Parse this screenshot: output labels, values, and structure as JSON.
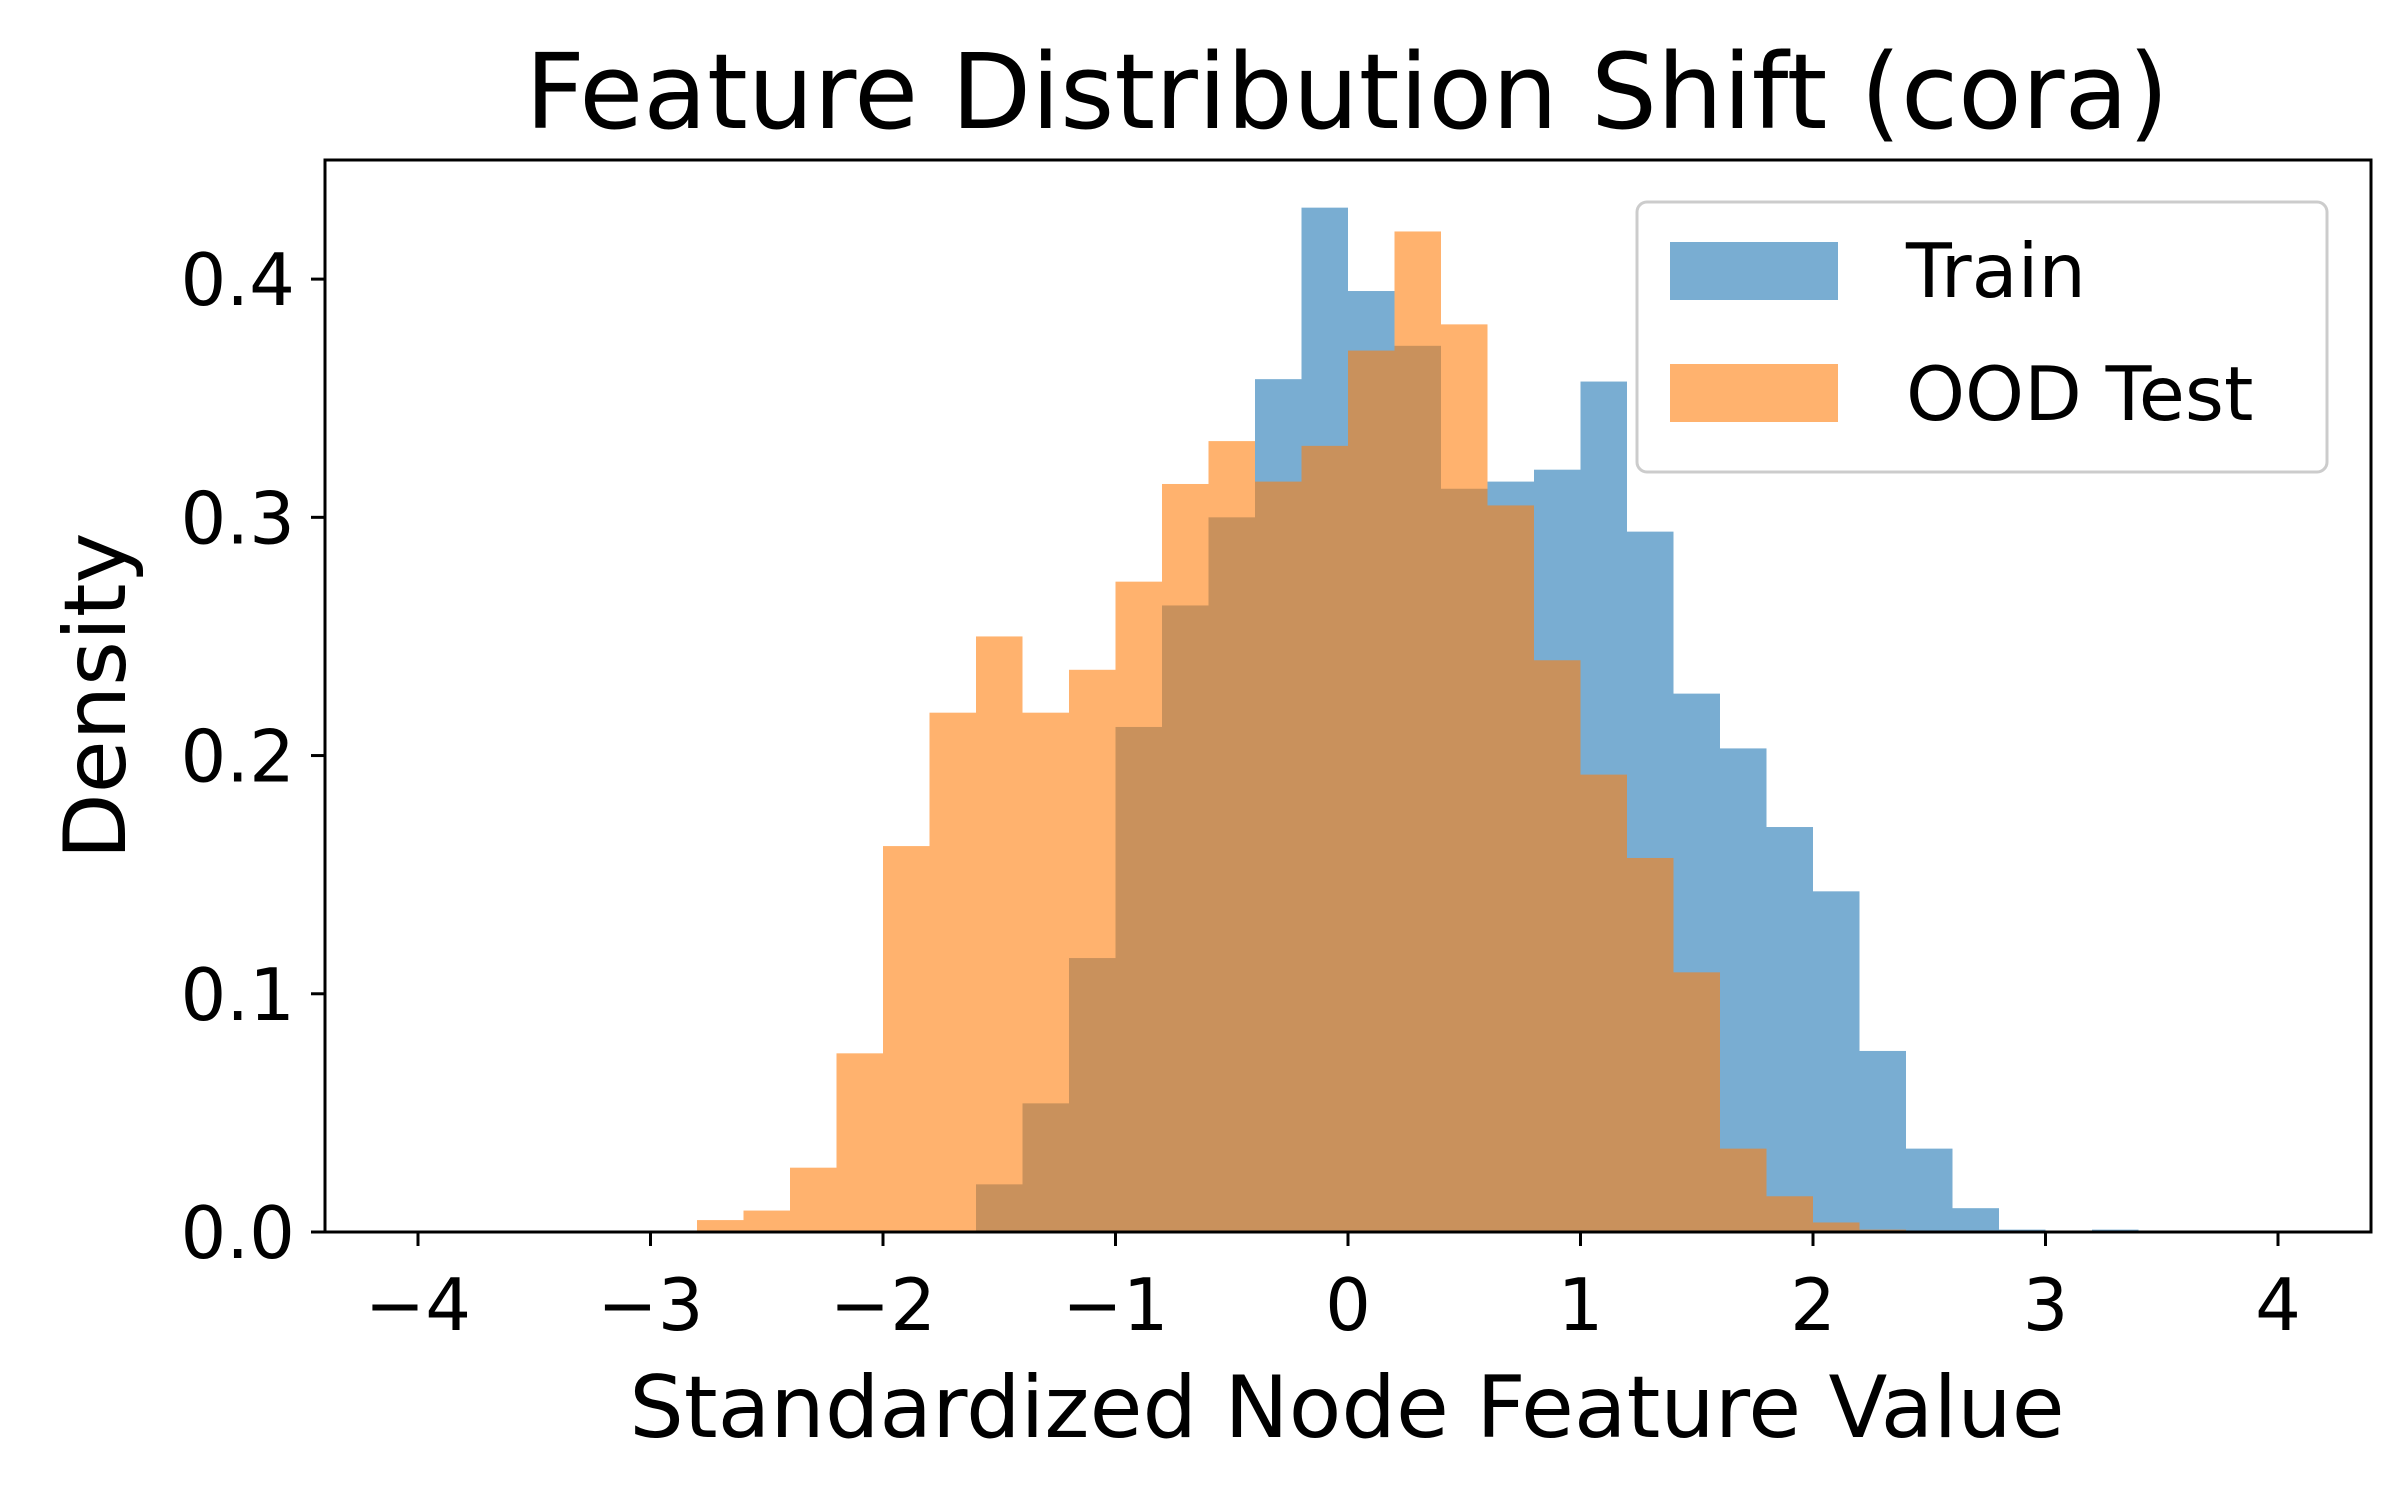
{
  "chart_data": {
    "type": "bar",
    "title": "Feature Distribution Shift (cora)",
    "xlabel": "Standardized Node Feature Value",
    "ylabel": "Density",
    "xlim": [
      -4.4,
      4.4
    ],
    "ylim": [
      0,
      0.45
    ],
    "x_ticks": [
      -4,
      -3,
      -2,
      -1,
      0,
      1,
      2,
      3,
      4
    ],
    "x_tick_labels": [
      "−4",
      "−3",
      "−2",
      "−1",
      "0",
      "1",
      "2",
      "3",
      "4"
    ],
    "y_ticks": [
      0.0,
      0.1,
      0.2,
      0.3,
      0.4
    ],
    "y_tick_labels": [
      "0.0",
      "0.1",
      "0.2",
      "0.3",
      "0.4"
    ],
    "grid": false,
    "legend_position": "top-right",
    "bin_width": 0.2,
    "series": [
      {
        "name": "Train",
        "color": "#1f77b4",
        "opacity": 0.6,
        "bins": [
          {
            "x0": -1.6,
            "value": 0.02
          },
          {
            "x0": -1.4,
            "value": 0.054
          },
          {
            "x0": -1.2,
            "value": 0.115
          },
          {
            "x0": -1.0,
            "value": 0.212
          },
          {
            "x0": -0.8,
            "value": 0.263
          },
          {
            "x0": -0.6,
            "value": 0.3
          },
          {
            "x0": -0.4,
            "value": 0.358
          },
          {
            "x0": -0.2,
            "value": 0.43
          },
          {
            "x0": 0.0,
            "value": 0.395
          },
          {
            "x0": 0.2,
            "value": 0.372
          },
          {
            "x0": 0.4,
            "value": 0.312
          },
          {
            "x0": 0.6,
            "value": 0.315
          },
          {
            "x0": 0.8,
            "value": 0.32
          },
          {
            "x0": 1.0,
            "value": 0.357
          },
          {
            "x0": 1.2,
            "value": 0.294
          },
          {
            "x0": 1.4,
            "value": 0.226
          },
          {
            "x0": 1.6,
            "value": 0.203
          },
          {
            "x0": 1.8,
            "value": 0.17
          },
          {
            "x0": 2.0,
            "value": 0.143
          },
          {
            "x0": 2.2,
            "value": 0.076
          },
          {
            "x0": 2.4,
            "value": 0.035
          },
          {
            "x0": 2.6,
            "value": 0.01
          },
          {
            "x0": 2.8,
            "value": 0.001
          },
          {
            "x0": 3.2,
            "value": 0.001
          }
        ]
      },
      {
        "name": "OOD Test",
        "color": "#ff7f0e",
        "opacity": 0.6,
        "bins": [
          {
            "x0": -2.8,
            "value": 0.005
          },
          {
            "x0": -2.6,
            "value": 0.009
          },
          {
            "x0": -2.4,
            "value": 0.027
          },
          {
            "x0": -2.2,
            "value": 0.075
          },
          {
            "x0": -2.0,
            "value": 0.162
          },
          {
            "x0": -1.8,
            "value": 0.218
          },
          {
            "x0": -1.6,
            "value": 0.25
          },
          {
            "x0": -1.4,
            "value": 0.218
          },
          {
            "x0": -1.2,
            "value": 0.236
          },
          {
            "x0": -1.0,
            "value": 0.273
          },
          {
            "x0": -0.8,
            "value": 0.314
          },
          {
            "x0": -0.6,
            "value": 0.332
          },
          {
            "x0": -0.4,
            "value": 0.315
          },
          {
            "x0": -0.2,
            "value": 0.33
          },
          {
            "x0": 0.0,
            "value": 0.37
          },
          {
            "x0": 0.2,
            "value": 0.42
          },
          {
            "x0": 0.4,
            "value": 0.381
          },
          {
            "x0": 0.6,
            "value": 0.305
          },
          {
            "x0": 0.8,
            "value": 0.24
          },
          {
            "x0": 1.0,
            "value": 0.192
          },
          {
            "x0": 1.2,
            "value": 0.157
          },
          {
            "x0": 1.4,
            "value": 0.109
          },
          {
            "x0": 1.6,
            "value": 0.035
          },
          {
            "x0": 1.8,
            "value": 0.015
          },
          {
            "x0": 2.0,
            "value": 0.004
          },
          {
            "x0": 2.2,
            "value": 0.001
          }
        ]
      }
    ]
  }
}
